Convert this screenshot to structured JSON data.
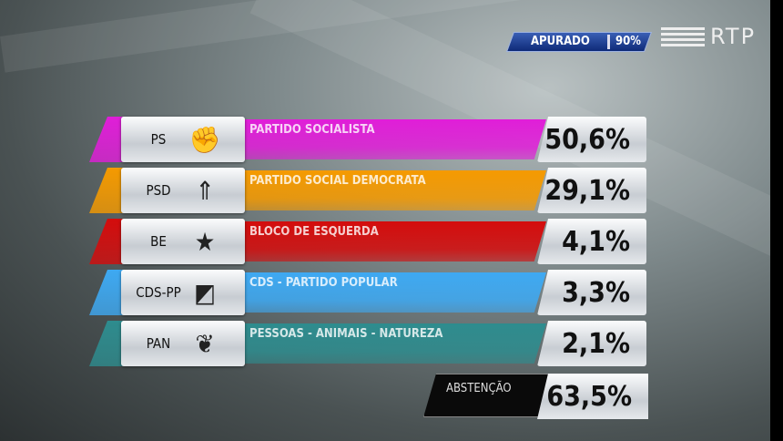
{
  "header": {
    "apurado_label": "APURADO",
    "apurado_value": "90%",
    "channel_logo": "RTP"
  },
  "results": [
    {
      "abbr": "PS",
      "name": "PARTIDO SOCIALISTA",
      "percent": "50,6%",
      "color": "#e01ed8",
      "icon": "fist-icon"
    },
    {
      "abbr": "PSD",
      "name": "PARTIDO SOCIAL DEMOCRATA",
      "percent": "29,1%",
      "color": "#f59a00",
      "icon": "arrows-icon"
    },
    {
      "abbr": "BE",
      "name": "BLOCO DE ESQUERDA",
      "percent": "4,1%",
      "color": "#d40c0c",
      "icon": "star-person-icon"
    },
    {
      "abbr": "CDS-PP",
      "name": "CDS - PARTIDO POPULAR",
      "percent": "3,3%",
      "color": "#3ea9f2",
      "icon": "square-ball-icon"
    },
    {
      "abbr": "PAN",
      "name": "PESSOAS - ANIMAIS - NATUREZA",
      "percent": "2,1%",
      "color": "#2e8c8e",
      "icon": "tree-icon"
    }
  ],
  "abstention": {
    "label": "ABSTENÇÃO",
    "percent": "63,5%"
  }
}
